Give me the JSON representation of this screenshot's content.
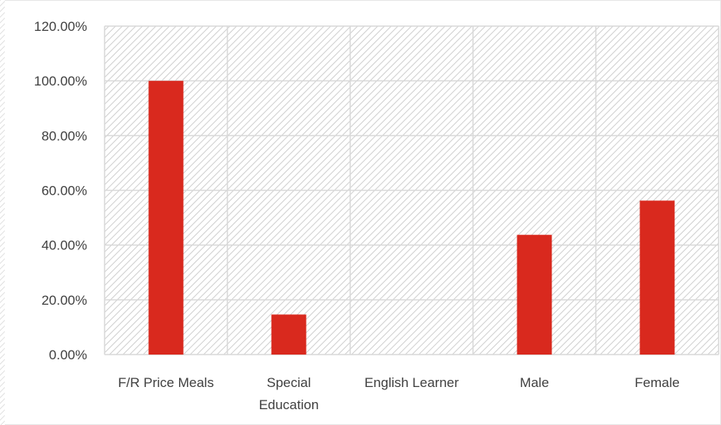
{
  "chart_data": {
    "type": "bar",
    "categories": [
      "F/R Price Meals",
      "Special Education",
      "English Learner",
      "Male",
      "Female"
    ],
    "category_label_lines": [
      [
        "F/R Price Meals"
      ],
      [
        "Special",
        "Education"
      ],
      [
        "English Learner"
      ],
      [
        "Male"
      ],
      [
        "Female"
      ]
    ],
    "series": [
      {
        "values": [
          1.0,
          0.1463,
          0.0,
          0.4375,
          0.5625
        ]
      }
    ],
    "ylim": [
      0,
      1.2
    ],
    "y_ticks": [
      0,
      0.2,
      0.4,
      0.6,
      0.8,
      1.0,
      1.2
    ],
    "y_tick_labels": [
      "0.00%",
      "20.00%",
      "40.00%",
      "60.00%",
      "80.00%",
      "100.00%",
      "120.00%"
    ],
    "title": "",
    "xlabel": "",
    "ylabel": "",
    "grid": true,
    "legend": "none",
    "colors": {
      "bar": "#d9291e",
      "grid": "#d9d9d9",
      "hatch": "#cfcfcf",
      "text": "#404040",
      "border": "#d9d9d9"
    }
  }
}
